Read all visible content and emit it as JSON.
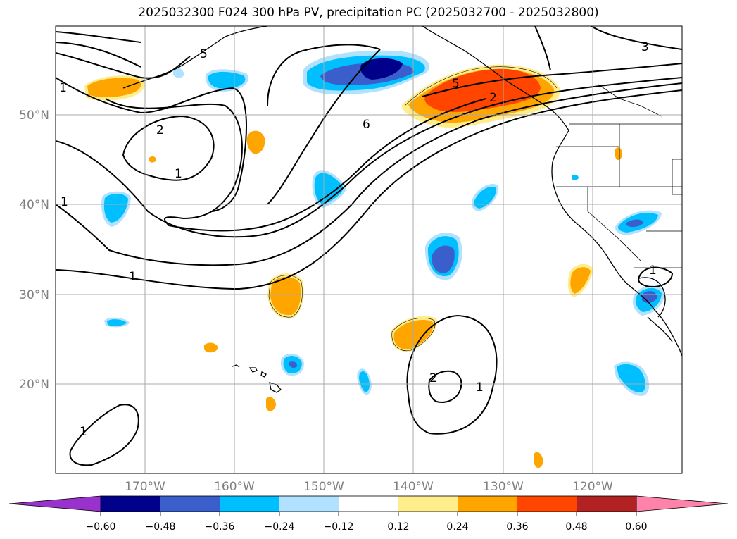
{
  "title": "2025032300 F024 300 hPa PV, precipitation PC (2025032700 - 2025032800)",
  "lon_labels": [
    "170°W",
    "160°W",
    "150°W",
    "140°W",
    "130°W",
    "120°W"
  ],
  "lat_labels": [
    "50°N",
    "40°N",
    "30°N",
    "20°N"
  ],
  "colorbar": {
    "ticks": [
      "−0.60",
      "−0.48",
      "−0.36",
      "−0.24",
      "−0.12",
      "0.12",
      "0.24",
      "0.36",
      "0.48",
      "0.60"
    ],
    "colors": [
      "#9932cc",
      "#00008b",
      "#3a5fcd",
      "#00bfff",
      "#b0e2ff",
      "#ffffff",
      "#ffec8b",
      "#ffa500",
      "#ff4500",
      "#b22222",
      "#ff82ab"
    ]
  },
  "contour_labels": [
    "1",
    "2",
    "1",
    "1",
    "6",
    "5",
    "5",
    "2",
    "3",
    "1",
    "1",
    "2",
    "1",
    "1"
  ]
}
